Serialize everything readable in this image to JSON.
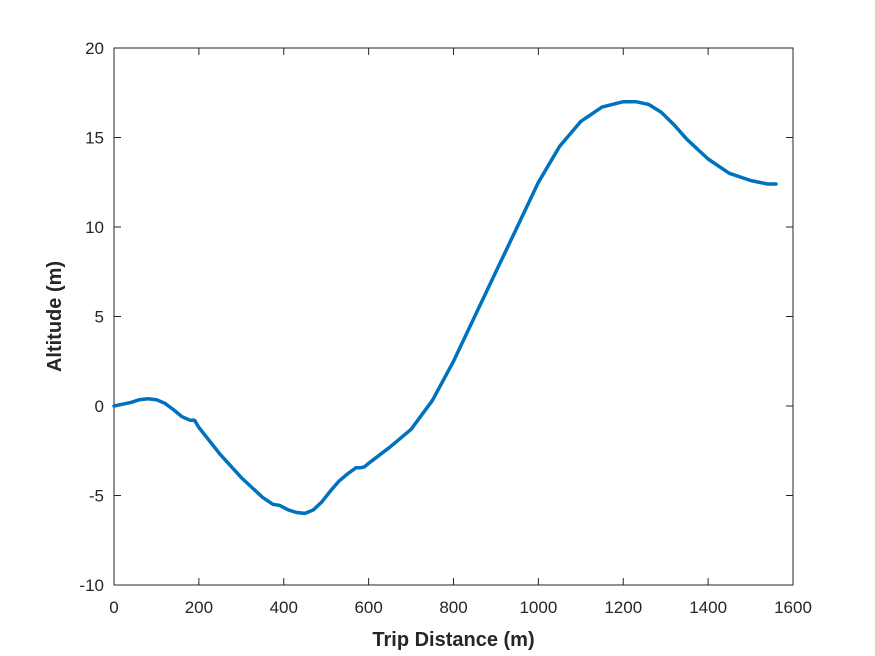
{
  "chart_data": {
    "type": "line",
    "title": "",
    "xlabel": "Trip Distance (m)",
    "ylabel": "Altitude (m)",
    "xlim": [
      0,
      1600
    ],
    "ylim": [
      -10,
      20
    ],
    "xticks": [
      0,
      200,
      400,
      600,
      800,
      1000,
      1200,
      1400,
      1600
    ],
    "yticks": [
      -10,
      -5,
      0,
      5,
      10,
      15,
      20
    ],
    "grid": false,
    "box": true,
    "series": [
      {
        "color": "#0072BD",
        "x": [
          0,
          20,
          40,
          60,
          80,
          100,
          120,
          140,
          160,
          180,
          190,
          200,
          250,
          300,
          350,
          375,
          390,
          410,
          430,
          450,
          470,
          490,
          510,
          530,
          550,
          570,
          580,
          590,
          600,
          650,
          700,
          750,
          800,
          850,
          900,
          950,
          1000,
          1050,
          1100,
          1150,
          1200,
          1230,
          1260,
          1290,
          1320,
          1350,
          1400,
          1450,
          1500,
          1540,
          1560
        ],
        "y": [
          0.0,
          0.1,
          0.2,
          0.35,
          0.4,
          0.35,
          0.15,
          -0.2,
          -0.6,
          -0.8,
          -0.8,
          -1.2,
          -2.7,
          -4.0,
          -5.1,
          -5.5,
          -5.55,
          -5.8,
          -5.95,
          -6.0,
          -5.8,
          -5.35,
          -4.75,
          -4.2,
          -3.8,
          -3.45,
          -3.45,
          -3.4,
          -3.2,
          -2.3,
          -1.3,
          0.3,
          2.5,
          5.0,
          7.5,
          10.0,
          12.5,
          14.5,
          15.9,
          16.7,
          17.0,
          17.0,
          16.85,
          16.4,
          15.7,
          14.9,
          13.8,
          13.0,
          12.6,
          12.4,
          12.4
        ]
      }
    ]
  }
}
